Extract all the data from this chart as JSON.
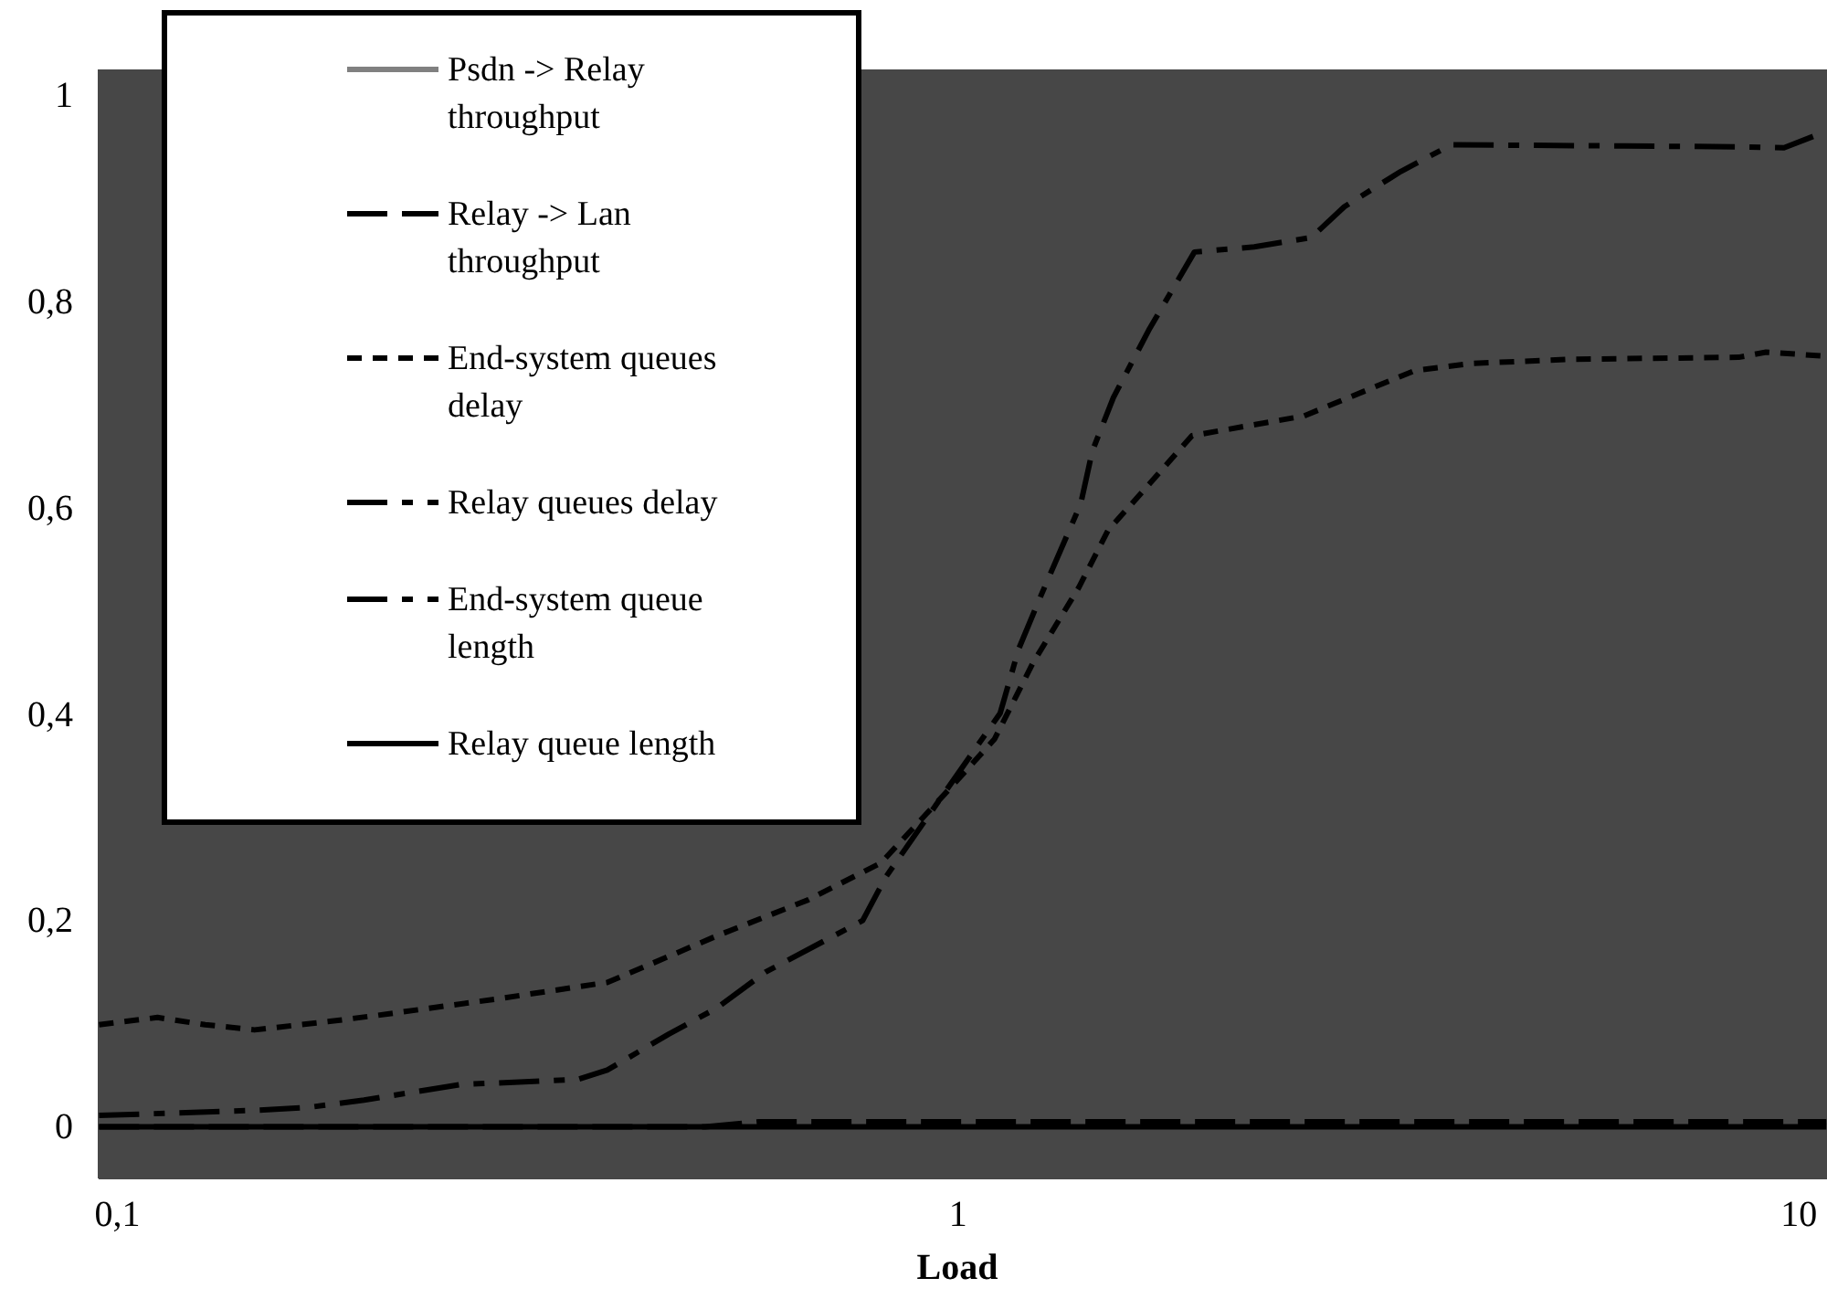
{
  "chart_data": {
    "type": "line",
    "xlabel": "Load",
    "log": "x",
    "xlim": [
      0.095,
      10.8
    ],
    "ylim": [
      -0.05,
      1.025
    ],
    "xticks": [
      {
        "value": 0.1,
        "label": "0,1"
      },
      1,
      10
    ],
    "yticks": [
      0,
      {
        "value": 0.2,
        "label": "0,2"
      },
      {
        "value": 0.4,
        "label": "0,4"
      },
      {
        "value": 0.6,
        "label": "0,6"
      },
      {
        "value": 0.8,
        "label": "0,8"
      },
      1
    ],
    "grid": false,
    "legend": "top left",
    "marker": "none",
    "series": [
      {
        "name": "Psdn -> Relay throughput",
        "color": "#808080",
        "line_style": "solid"
      },
      {
        "name": "Relay -> Lan throughput",
        "color": "#000000",
        "line_style": "dashed",
        "x": [
          0.0951,
          0.5,
          0.58,
          10.78
        ],
        "values": [
          0,
          0,
          0.005,
          0.005
        ]
      },
      {
        "name": "End-system queues delay",
        "color": "#000000",
        "line_style": "dotted",
        "x": [
          0.0951,
          0.1116,
          0.1272,
          0.1456,
          0.178,
          0.2036,
          0.283,
          0.3825,
          0.423,
          0.516,
          0.663,
          0.81,
          0.975,
          1.105,
          1.228,
          1.392,
          1.507,
          1.726,
          1.897,
          2.576,
          3.49,
          4.08,
          5.35,
          8.48,
          9.14,
          10.78
        ],
        "values": [
          0.099,
          0.106,
          0.099,
          0.094,
          0.102,
          0.108,
          0.124,
          0.14,
          0.155,
          0.185,
          0.22,
          0.256,
          0.327,
          0.376,
          0.45,
          0.523,
          0.578,
          0.632,
          0.67,
          0.689,
          0.733,
          0.74,
          0.744,
          0.746,
          0.751,
          0.747
        ]
      },
      {
        "name": "Relay queues delay",
        "color": "#000000",
        "line_style": "dashdot",
        "x": [
          0.0951,
          0.1456,
          0.1692,
          0.1965,
          0.256,
          0.353,
          0.3825,
          0.453,
          0.516,
          0.59,
          0.77,
          0.82,
          0.91,
          1.122,
          1.18,
          1.25,
          1.399,
          1.444,
          1.53,
          1.69,
          1.91,
          2.25,
          2.63,
          2.88,
          3.36,
          3.86,
          8.48,
          9.6,
          10.78
        ],
        "values": [
          0.011,
          0.016,
          0.019,
          0.026,
          0.041,
          0.046,
          0.055,
          0.09,
          0.115,
          0.15,
          0.2,
          0.242,
          0.295,
          0.401,
          0.463,
          0.512,
          0.604,
          0.655,
          0.707,
          0.774,
          0.848,
          0.853,
          0.862,
          0.892,
          0.926,
          0.952,
          0.95,
          0.949,
          0.965
        ]
      },
      {
        "name": "End-system queue length",
        "color": "#000000",
        "line_style": "dashdotdot"
      },
      {
        "name": "Relay queue length",
        "color": "#000000",
        "line_style": "solid",
        "x": [
          0.0951,
          10.78
        ],
        "values": [
          0,
          0
        ]
      }
    ]
  }
}
